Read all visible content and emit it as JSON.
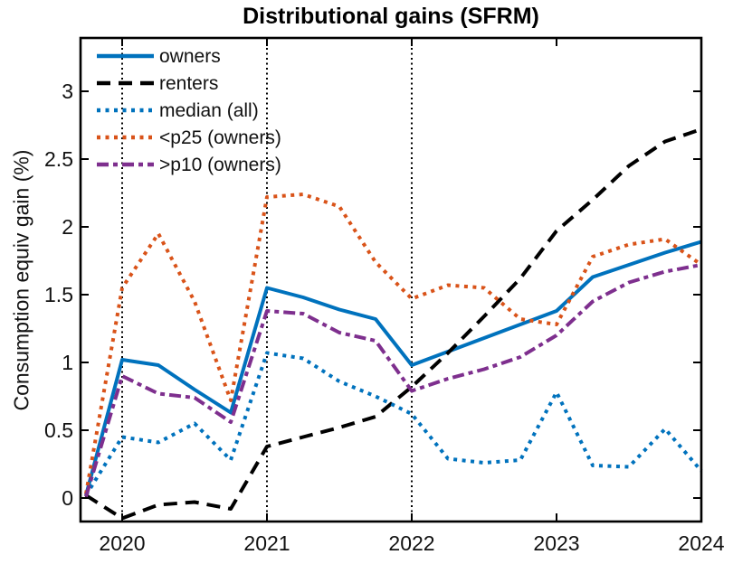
{
  "chart_data": {
    "type": "line",
    "title": "Distributional gains (SFRM)",
    "ylabel": "Consumption equiv gain (%)",
    "xlabel": "",
    "grid": false,
    "legend_position": "top-left",
    "xlim": [
      2019.71,
      2024
    ],
    "ylim": [
      -0.17,
      3.39
    ],
    "x_ticks": [
      2020,
      2021,
      2022,
      2023,
      2024
    ],
    "x_tick_labels": [
      "2020",
      "2021",
      "2022",
      "2023",
      "2024"
    ],
    "y_ticks": [
      0,
      0.5,
      1,
      1.5,
      2,
      2.5,
      3
    ],
    "y_tick_labels": [
      "0",
      "0.5",
      "1",
      "1.5",
      "2",
      "2.5",
      "3"
    ],
    "vlines": [
      2020,
      2021,
      2022
    ],
    "x": [
      2019.75,
      2020,
      2020.25,
      2020.5,
      2020.75,
      2021,
      2021.25,
      2021.5,
      2021.75,
      2022,
      2022.25,
      2022.5,
      2022.75,
      2023,
      2023.25,
      2023.5,
      2023.75,
      2024
    ],
    "series": [
      {
        "name": "owners",
        "color": "#0072BD",
        "style": "solid",
        "values": [
          0.02,
          1.02,
          0.98,
          0.8,
          0.63,
          1.55,
          1.48,
          1.39,
          1.32,
          0.98,
          1.08,
          1.18,
          1.28,
          1.38,
          1.63,
          1.72,
          1.81,
          1.89
        ]
      },
      {
        "name": "renters",
        "color": "#000000",
        "style": "dashed",
        "values": [
          0.02,
          -0.15,
          -0.05,
          -0.03,
          -0.08,
          0.38,
          0.45,
          0.52,
          0.6,
          0.82,
          1.07,
          1.34,
          1.62,
          1.97,
          2.2,
          2.45,
          2.63,
          2.72
        ]
      },
      {
        "name": "median (all)",
        "color": "#0072BD",
        "style": "dotted",
        "values": [
          0.02,
          0.45,
          0.41,
          0.55,
          0.28,
          1.07,
          1.03,
          0.86,
          0.75,
          0.62,
          0.29,
          0.26,
          0.28,
          0.78,
          0.24,
          0.23,
          0.51,
          0.2
        ]
      },
      {
        "name": "<p25 (owners)",
        "color": "#D95319",
        "style": "dotted",
        "values": [
          0.03,
          1.55,
          1.95,
          1.45,
          0.72,
          2.22,
          2.24,
          2.15,
          1.74,
          1.47,
          1.57,
          1.55,
          1.32,
          1.28,
          1.78,
          1.87,
          1.91,
          1.72
        ]
      },
      {
        "name": ">p10 (owners)",
        "color": "#7E2F8E",
        "style": "dashdot",
        "values": [
          0.01,
          0.9,
          0.77,
          0.74,
          0.56,
          1.38,
          1.36,
          1.22,
          1.16,
          0.79,
          0.88,
          0.95,
          1.04,
          1.2,
          1.45,
          1.59,
          1.67,
          1.72
        ]
      }
    ]
  }
}
